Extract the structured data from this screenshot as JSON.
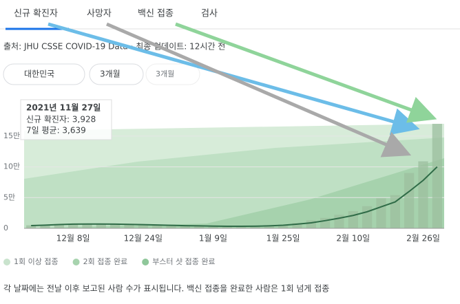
{
  "tabs": [
    "신규 확진자",
    "사망자",
    "백신 접종",
    "검사"
  ],
  "source": "출처: JHU CSSE COVID-19 Data · 최종 업데이트: 12시간 전",
  "filters": [
    "대한민국",
    "3개월",
    "3개월"
  ],
  "tooltip": {
    "date": "2021년 11월 27일",
    "rows": [
      "신규 확진자: 3,928",
      "7일 평균: 3,639"
    ]
  },
  "legend": [
    {
      "name": "1회 이상 접종",
      "color": "#c9e3cd"
    },
    {
      "name": "2회 접종 완료",
      "color": "#a7d3ae"
    },
    {
      "name": "부스터 샷 접종 완료",
      "color": "#8fc79a"
    }
  ],
  "footer": "각 날짜에는 전날 이후 보고된 사람 수가 표시됩니다. 백신 접종을 완료한 사람은 1회 넘게 접종",
  "chart_data": {
    "type": "bar",
    "categories": [
      null,
      null,
      null,
      "12월 8일",
      null,
      null,
      null,
      null,
      "12월 24일",
      null,
      null,
      null,
      null,
      "1월 9일",
      null,
      null,
      null,
      null,
      "1월 25일",
      null,
      null,
      null,
      null,
      "2월 10일",
      null,
      null,
      null,
      null,
      "2월 26일",
      null
    ],
    "values": [
      5000,
      6000,
      7000,
      7100,
      7000,
      7200,
      6500,
      6200,
      5800,
      5300,
      4500,
      4000,
      3800,
      3500,
      3200,
      3300,
      3600,
      4400,
      6000,
      8500,
      13000,
      17000,
      22000,
      28000,
      36000,
      49000,
      54000,
      90000,
      109000,
      170000
    ],
    "color": "#9cbf9f",
    "line": {
      "color": "#2f6b47",
      "values": [
        4500,
        5200,
        6100,
        6800,
        7000,
        7000,
        6800,
        6400,
        6000,
        5500,
        4900,
        4400,
        4000,
        3700,
        3400,
        3300,
        3500,
        4000,
        5000,
        6800,
        9000,
        12500,
        16500,
        21000,
        27000,
        35000,
        43000,
        60000,
        78000,
        100000
      ]
    },
    "ylim": [
      0,
      170000
    ],
    "yticks": [
      0,
      {
        "value": 50000,
        "label": "5만"
      },
      {
        "value": 100000,
        "label": "10만"
      },
      {
        "value": 150000,
        "label": "15만"
      }
    ]
  }
}
